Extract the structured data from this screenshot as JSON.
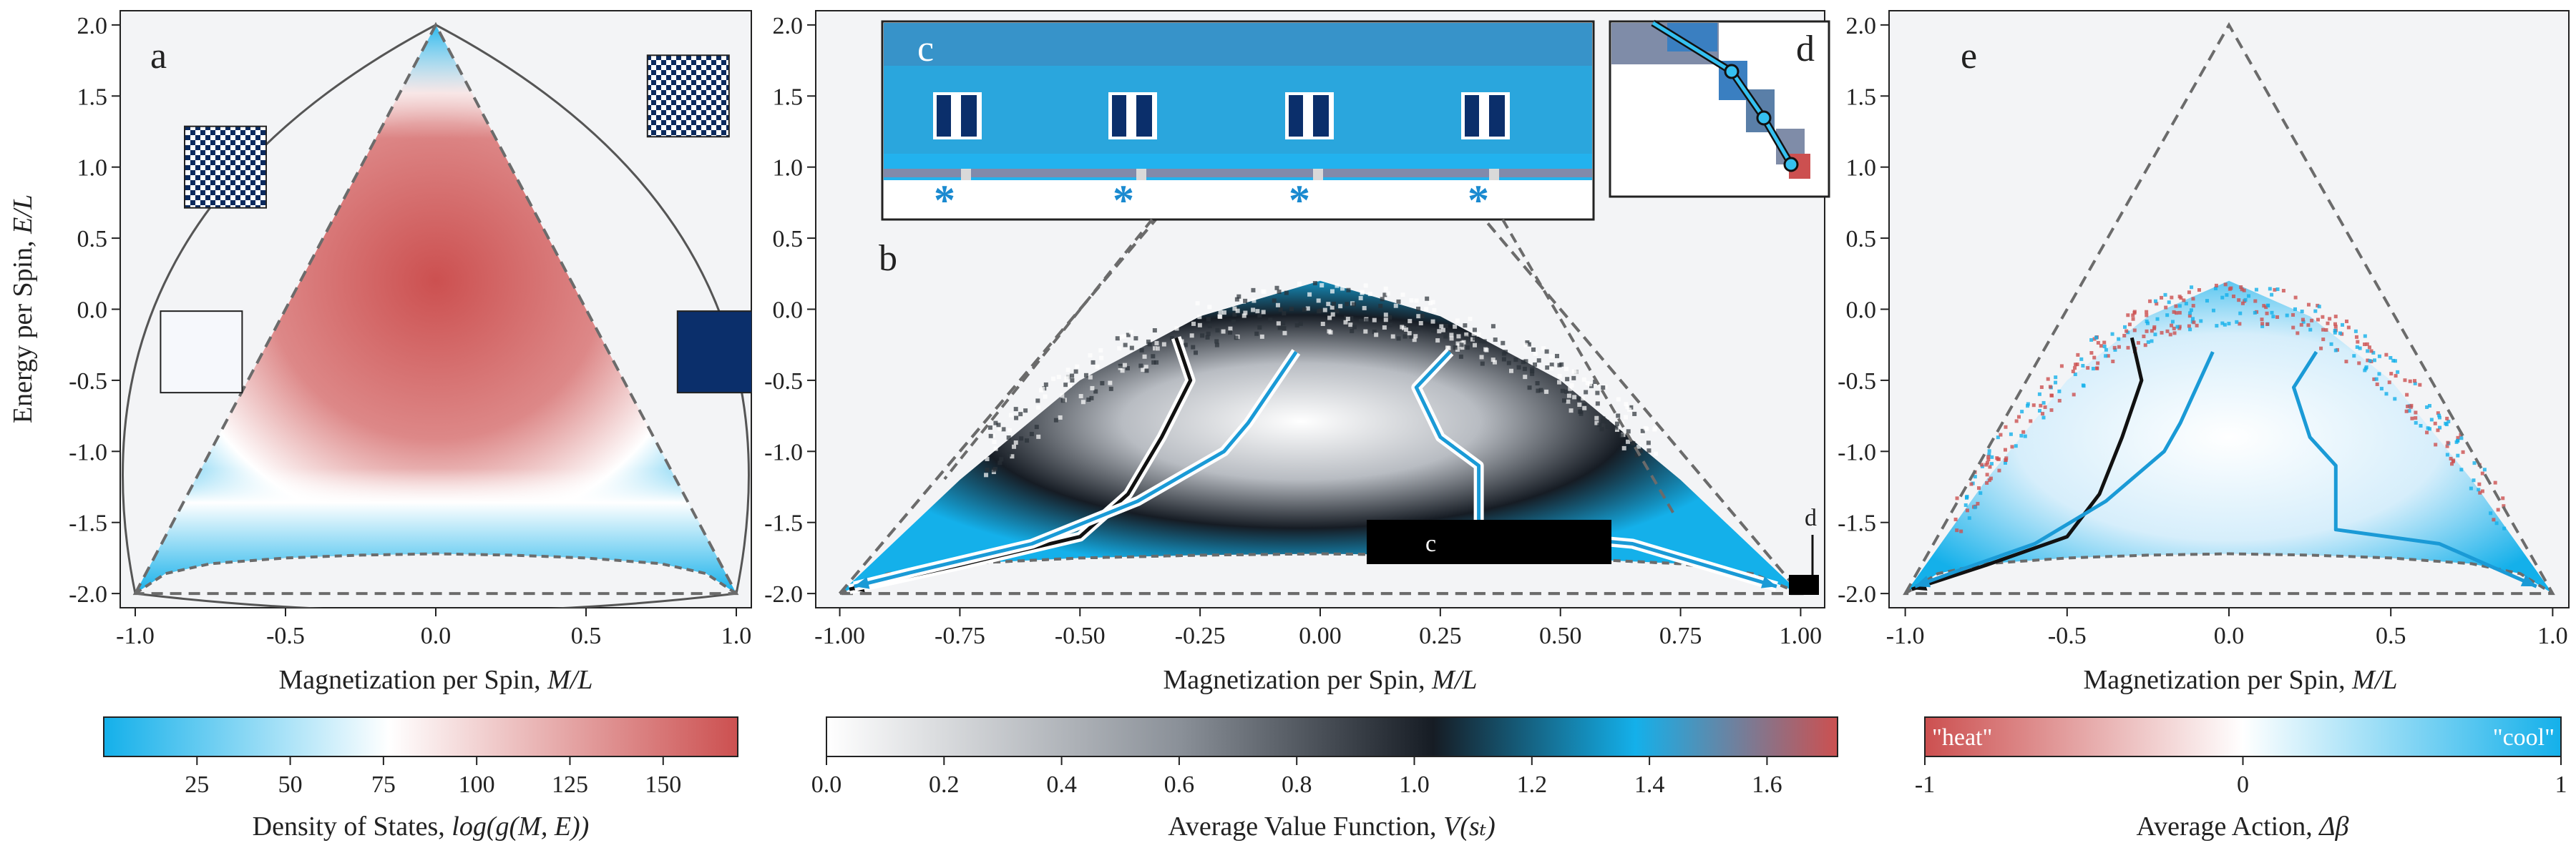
{
  "panels": [
    {
      "letter": "a",
      "ylabel_text": "Energy per Spin, ",
      "ylabel_var": "E/L",
      "xlabel_text": "Magnetization per Spin, ",
      "xlabel_var": "M/L",
      "xticks": [
        "-1.0",
        "-0.5",
        "0.0",
        "0.5",
        "1.0"
      ],
      "xtick_values": [
        -1.0,
        -0.5,
        0.0,
        0.5,
        1.0
      ],
      "yticks": [
        "2.0",
        "1.5",
        "1.0",
        "0.5",
        "0.0",
        "-0.5",
        "-1.0",
        "-1.5",
        "-2.0"
      ],
      "ytick_values": [
        2.0,
        1.5,
        1.0,
        0.5,
        0.0,
        -0.5,
        -1.0,
        -1.5,
        -2.0
      ],
      "xlim": [
        -1.05,
        1.05
      ],
      "ylim": [
        -2.1,
        2.1
      ],
      "colorbar": {
        "label_text": "Density of States, ",
        "label_var": "log(g(M, E))",
        "ticks": [
          "25",
          "50",
          "75",
          "100",
          "125",
          "150"
        ],
        "tick_values": [
          25,
          50,
          75,
          100,
          125,
          150
        ],
        "range": [
          0,
          170
        ],
        "colors": [
          "#14b0ea",
          "#ffffff",
          "#cc5050"
        ]
      }
    },
    {
      "letter": "b",
      "xlabel_text": "Magnetization per Spin, ",
      "xlabel_var": "M/L",
      "xticks": [
        "-1.00",
        "-0.75",
        "-0.50",
        "-0.25",
        "0.00",
        "0.25",
        "0.50",
        "0.75",
        "1.00"
      ],
      "xtick_values": [
        -1.0,
        -0.75,
        -0.5,
        -0.25,
        0.0,
        0.25,
        0.5,
        0.75,
        1.0
      ],
      "yticks": [
        "2.0",
        "1.5",
        "1.0",
        "0.5",
        "0.0",
        "-0.5",
        "-1.0",
        "-1.5",
        "-2.0"
      ],
      "ytick_values": [
        2.0,
        1.5,
        1.0,
        0.5,
        0.0,
        -0.5,
        -1.0,
        -1.5,
        -2.0
      ],
      "xlim": [
        -1.05,
        1.05
      ],
      "ylim": [
        -2.1,
        2.1
      ],
      "inset_c_letter": "c",
      "inset_d_letter": "d",
      "inset_c_marker_label": "c",
      "inset_d_marker_label": "d",
      "inset_c_stars": [
        "*",
        "*",
        "*",
        "*"
      ],
      "colorbar": {
        "label_text": "Average Value Function, ",
        "label_var": "V(sₜ)",
        "ticks": [
          "0.0",
          "0.2",
          "0.4",
          "0.6",
          "0.8",
          "1.0",
          "1.2",
          "1.4",
          "1.6"
        ],
        "tick_values": [
          0.0,
          0.2,
          0.4,
          0.6,
          0.8,
          1.0,
          1.2,
          1.4,
          1.6
        ],
        "range": [
          0.0,
          1.72
        ],
        "colors": [
          "#ffffff",
          "#8a9098",
          "#161c24",
          "#14b0ea",
          "#cc5050"
        ]
      }
    },
    {
      "letter": "e",
      "xlabel_text": "Magnetization per Spin, ",
      "xlabel_var": "M/L",
      "xticks": [
        "-1.0",
        "-0.5",
        "0.0",
        "0.5",
        "1.0"
      ],
      "xtick_values": [
        -1.0,
        -0.5,
        0.0,
        0.5,
        1.0
      ],
      "yticks": [
        "2.0",
        "1.5",
        "1.0",
        "0.5",
        "0.0",
        "-0.5",
        "-1.0",
        "-1.5",
        "-2.0"
      ],
      "ytick_values": [
        2.0,
        1.5,
        1.0,
        0.5,
        0.0,
        -0.5,
        -1.0,
        -1.5,
        -2.0
      ],
      "xlim": [
        -1.05,
        1.05
      ],
      "ylim": [
        -2.1,
        2.1
      ],
      "colorbar": {
        "label_text": "Average Action, ",
        "label_var": "Δβ",
        "ticks": [
          "-1",
          "0",
          "1"
        ],
        "tick_values": [
          -1,
          0,
          1
        ],
        "range": [
          -1,
          1
        ],
        "end_left": "\"heat\"",
        "end_right": "\"cool\"",
        "colors": [
          "#cc5050",
          "#ffffff",
          "#14b0ea"
        ]
      }
    }
  ],
  "chart_data": {
    "type": "heatmap",
    "x_variable": "M/L",
    "y_variable": "E/L",
    "bounding_triangle": {
      "x": [
        -1.0,
        0.0,
        1.0
      ],
      "y": [
        -2.0,
        2.0,
        -2.0
      ]
    },
    "ground_state_curve": {
      "x": [
        -1.0,
        -0.9,
        -0.75,
        -0.5,
        -0.25,
        0.0,
        0.25,
        0.5,
        0.75,
        0.9,
        1.0
      ],
      "y": [
        -2.0,
        -1.86,
        -1.79,
        -1.75,
        -1.73,
        -1.72,
        -1.73,
        -1.75,
        -1.79,
        -1.86,
        -2.0
      ]
    },
    "visited_region_top": {
      "x": [
        -1.0,
        -0.75,
        -0.5,
        -0.25,
        0.0,
        0.25,
        0.5,
        0.75,
        1.0
      ],
      "y": [
        -2.0,
        -1.2,
        -0.5,
        -0.05,
        0.2,
        -0.05,
        -0.5,
        -1.2,
        -2.0
      ]
    },
    "trajectories": [
      {
        "color": "#111111",
        "x": [
          -0.3,
          -0.27,
          -0.33,
          -0.4,
          -0.5,
          -0.75,
          -0.98
        ],
        "y": [
          -0.2,
          -0.5,
          -0.9,
          -1.3,
          -1.6,
          -1.8,
          -1.97
        ]
      },
      {
        "color": "#1a9ad6",
        "x": [
          -0.05,
          -0.15,
          -0.2,
          -0.38,
          -0.6,
          -0.85,
          -0.97
        ],
        "y": [
          -0.3,
          -0.8,
          -1.0,
          -1.35,
          -1.65,
          -1.85,
          -1.95
        ]
      },
      {
        "color": "#1a9ad6",
        "x": [
          0.27,
          0.2,
          0.25,
          0.33,
          0.33,
          0.65,
          0.95
        ],
        "y": [
          -0.3,
          -0.55,
          -0.9,
          -1.1,
          -1.55,
          -1.65,
          -1.95
        ]
      }
    ]
  }
}
